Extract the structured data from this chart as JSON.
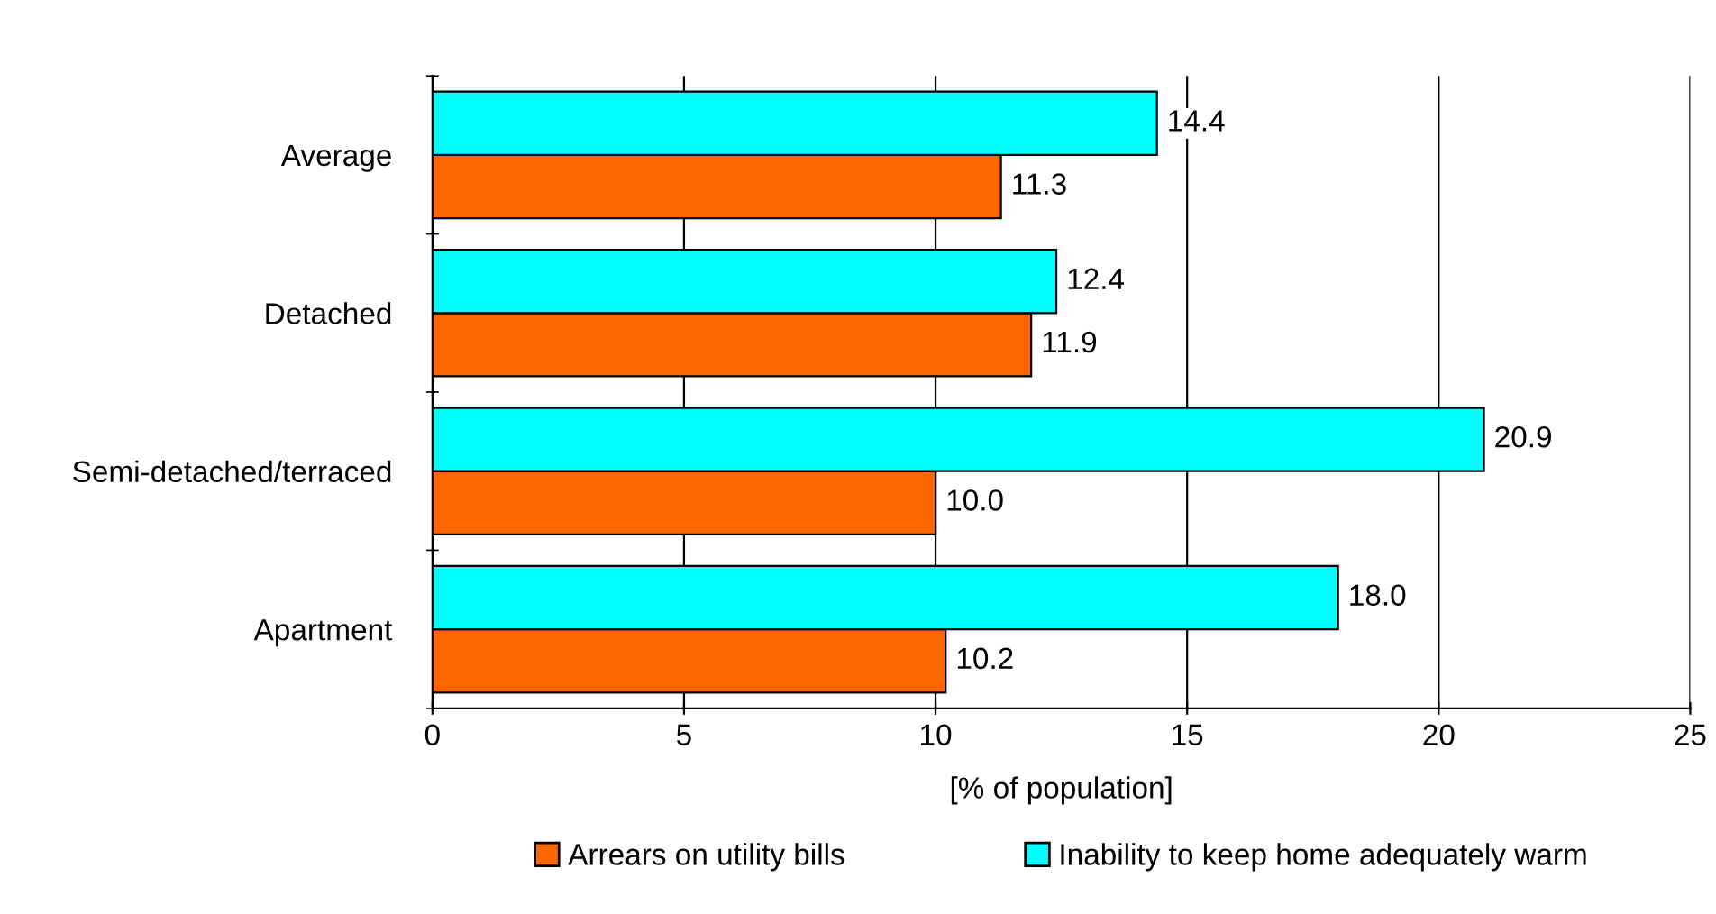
{
  "chart_data": {
    "type": "bar",
    "orientation": "horizontal",
    "xlabel": "[% of population]",
    "categories": [
      "Average",
      "Detached",
      "Semi-detached/terraced",
      "Apartment"
    ],
    "series": [
      {
        "name": "Arrears on utility bills",
        "color": "#ff6600",
        "values": [
          11.3,
          11.9,
          10.0,
          10.2
        ],
        "value_labels": [
          "11.3",
          "11.9",
          "10.0",
          "10.2"
        ]
      },
      {
        "name": "Inability to keep home adequately warm",
        "color": "#00ffff",
        "values": [
          14.4,
          12.4,
          20.9,
          18.0
        ],
        "value_labels": [
          "14.4",
          "12.4",
          "20.9",
          "18.0"
        ]
      }
    ],
    "xlim": [
      0,
      25
    ],
    "xticks": [
      0,
      5,
      10,
      15,
      20,
      25
    ],
    "grid": "x",
    "legend": "bottom"
  }
}
